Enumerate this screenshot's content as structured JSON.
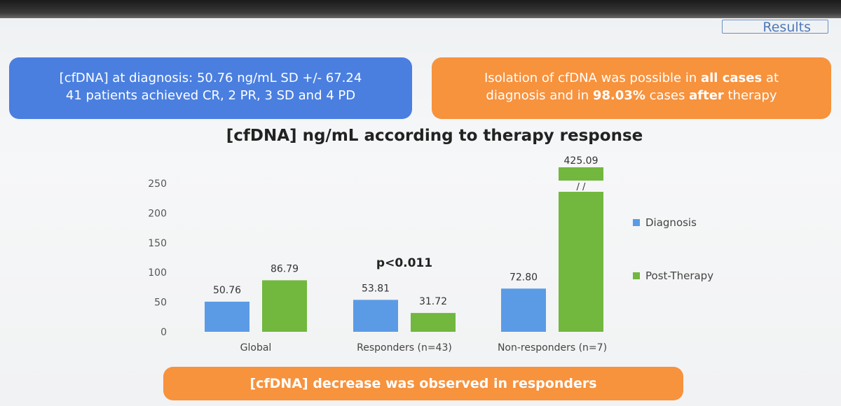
{
  "header": {
    "section_tab": "Results"
  },
  "info_boxes": {
    "left": {
      "line1": "[cfDNA] at diagnosis: 50.76 ng/mL SD +/- 67.24",
      "line2": "41 patients achieved CR, 2 PR, 3 SD and 4 PD"
    },
    "right": {
      "line1_a": "Isolation of cfDNA was possible in ",
      "line1_b": "all cases",
      "line1_c": " at",
      "line2_a": "diagnosis and in ",
      "line2_b": "98.03%",
      "line2_c": " cases ",
      "line2_d": "after",
      "line2_e": " therapy"
    }
  },
  "conclusion": "[cfDNA] decrease was observed in responders",
  "colors": {
    "diagnosis": "#5b9be6",
    "post_therapy": "#72b73e",
    "blue_box": "#4a7fe0",
    "orange_box": "#f7923d"
  },
  "chart_data": {
    "type": "bar",
    "title": "[cfDNA] ng/mL according to therapy response",
    "categories": [
      "Global",
      "Responders (n=43)",
      "Non-responders (n=7)"
    ],
    "series": [
      {
        "name": "Diagnosis",
        "values": [
          50.76,
          53.81,
          72.8
        ],
        "labels": [
          "50.76",
          "53.81",
          "72.80"
        ]
      },
      {
        "name": "Post-Therapy",
        "values": [
          86.79,
          31.72,
          425.09
        ],
        "labels": [
          "86.79",
          "31.72",
          "425.09"
        ]
      }
    ],
    "ylim": [
      0,
      250
    ],
    "yticks": [
      0,
      50,
      100,
      150,
      200,
      250
    ],
    "axis_break": {
      "category": "Non-responders (n=7)",
      "series": "Post-Therapy",
      "mark": "/ /"
    },
    "annotation": "p<0.011",
    "grid": false,
    "legend": "right"
  }
}
